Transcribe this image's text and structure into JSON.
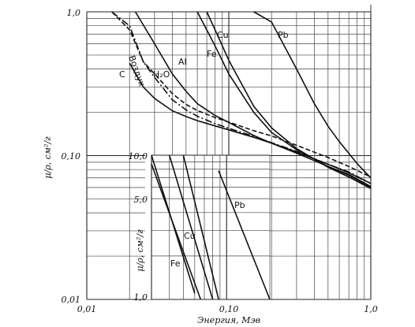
{
  "chart_data": [
    {
      "type": "line",
      "scale": "log-log",
      "grid": true,
      "xlabel": "Энергия, Мэв",
      "ylabel": "μ/ρ, см²/г",
      "xlim": [
        0.01,
        1.0
      ],
      "ylim": [
        0.01,
        1.0
      ],
      "x_ticks": [
        "0,01",
        "0,10",
        "1,0"
      ],
      "y_ticks": [
        "0,01",
        "0,10",
        "1,0"
      ],
      "series": [
        {
          "name": "C",
          "style": "solid",
          "x": [
            0.02,
            0.025,
            0.03,
            0.04,
            0.05,
            0.06,
            0.08,
            0.1,
            0.15,
            0.2,
            0.3,
            0.5,
            0.7,
            1.0
          ],
          "y": [
            0.44,
            0.3,
            0.25,
            0.205,
            0.187,
            0.175,
            0.161,
            0.151,
            0.134,
            0.122,
            0.106,
            0.087,
            0.076,
            0.064
          ]
        },
        {
          "name": "Воздух",
          "style": "dashdot",
          "x": [
            0.015,
            0.02,
            0.025,
            0.03,
            0.04,
            0.05,
            0.06,
            0.08,
            0.1,
            0.15,
            0.2,
            0.3,
            0.5,
            0.7,
            1.0
          ],
          "y": [
            1.0,
            0.8,
            0.45,
            0.35,
            0.245,
            0.208,
            0.188,
            0.167,
            0.155,
            0.136,
            0.123,
            0.107,
            0.087,
            0.077,
            0.064
          ]
        },
        {
          "name": "H₂O",
          "style": "dashed",
          "x": [
            0.015,
            0.02,
            0.025,
            0.03,
            0.04,
            0.05,
            0.06,
            0.08,
            0.1,
            0.15,
            0.2,
            0.3,
            0.5,
            0.7,
            1.0
          ],
          "y": [
            1.0,
            0.75,
            0.45,
            0.37,
            0.27,
            0.227,
            0.206,
            0.184,
            0.171,
            0.149,
            0.137,
            0.118,
            0.097,
            0.084,
            0.071
          ]
        },
        {
          "name": "Al",
          "style": "solid",
          "x": [
            0.022,
            0.03,
            0.04,
            0.05,
            0.06,
            0.08,
            0.1,
            0.15,
            0.2,
            0.3,
            0.5,
            0.7,
            1.0
          ],
          "y": [
            1.0,
            0.6,
            0.37,
            0.28,
            0.23,
            0.19,
            0.17,
            0.138,
            0.122,
            0.104,
            0.084,
            0.074,
            0.061
          ]
        },
        {
          "name": "Fe",
          "style": "solid",
          "x": [
            0.06,
            0.08,
            0.1,
            0.15,
            0.2,
            0.3,
            0.5,
            0.7,
            1.0
          ],
          "y": [
            1.0,
            0.58,
            0.37,
            0.2,
            0.145,
            0.11,
            0.084,
            0.073,
            0.06
          ]
        },
        {
          "name": "Cu",
          "style": "solid",
          "x": [
            0.07,
            0.08,
            0.1,
            0.15,
            0.2,
            0.3,
            0.5,
            0.7,
            1.0
          ],
          "y": [
            1.0,
            0.75,
            0.46,
            0.22,
            0.156,
            0.112,
            0.083,
            0.071,
            0.059
          ]
        },
        {
          "name": "Pb",
          "style": "solid",
          "x": [
            0.15,
            0.2,
            0.3,
            0.4,
            0.5,
            0.6,
            0.8,
            1.0
          ],
          "y": [
            1.0,
            0.85,
            0.4,
            0.23,
            0.16,
            0.125,
            0.088,
            0.07
          ]
        }
      ],
      "labels": [
        {
          "text": "C"
        },
        {
          "text": "Воздух"
        },
        {
          "text": "H₂O"
        },
        {
          "text": "Al"
        },
        {
          "text": "Fe"
        },
        {
          "text": "Cu"
        },
        {
          "text": "Pb"
        }
      ]
    },
    {
      "type": "line",
      "scale": "log-y",
      "inset": true,
      "grid": true,
      "ylabel": "μ/ρ, см²/г",
      "xlim": [
        0.03,
        0.2
      ],
      "ylim": [
        1.0,
        10.0
      ],
      "y_ticks": [
        "1,0",
        "5,0",
        "10,0"
      ],
      "series": [
        {
          "name": "Fe",
          "segments": [
            [
              [
                0.03,
                10.0
              ],
              [
                0.06,
                1.1
              ]
            ],
            [
              [
                0.03,
                8.7
              ],
              [
                0.066,
                1.0
              ]
            ]
          ]
        },
        {
          "name": "Cu",
          "segments": [
            [
              [
                0.04,
                10.0
              ],
              [
                0.08,
                1.0
              ]
            ]
          ]
        },
        {
          "name": "Pb",
          "segments": [
            [
              [
                0.05,
                10.0
              ],
              [
                0.088,
                1.0
              ]
            ],
            [
              [
                0.088,
                7.8
              ],
              [
                0.2,
                1.0
              ]
            ]
          ]
        }
      ],
      "labels": [
        {
          "text": "Fe"
        },
        {
          "text": "Cu"
        },
        {
          "text": "Pb"
        }
      ]
    }
  ]
}
